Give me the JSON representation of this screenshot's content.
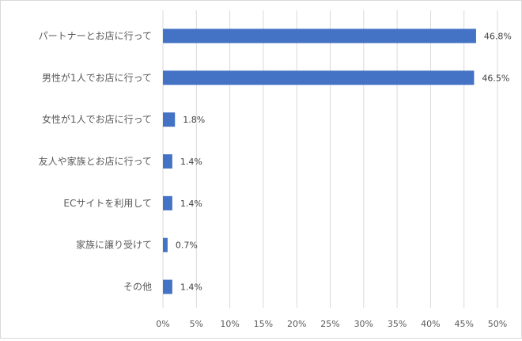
{
  "chart_data": {
    "type": "bar",
    "orientation": "horizontal",
    "categories": [
      "パートナーとお店に行って",
      "男性が1人でお店に行って",
      "女性が1人でお店に行って",
      "友人や家族とお店に行って",
      "ECサイトを利用して",
      "家族に譲り受けて",
      "その他"
    ],
    "values": [
      46.8,
      46.5,
      1.8,
      1.4,
      1.4,
      0.7,
      1.4
    ],
    "value_labels": [
      "46.8%",
      "46.5%",
      "1.8%",
      "1.4%",
      "1.4%",
      "0.7%",
      "1.4%"
    ],
    "xlim": [
      0,
      50
    ],
    "x_ticks": [
      0,
      5,
      10,
      15,
      20,
      25,
      30,
      35,
      40,
      45,
      50
    ],
    "x_tick_labels": [
      "0%",
      "5%",
      "10%",
      "15%",
      "20%",
      "25%",
      "30%",
      "35%",
      "40%",
      "45%",
      "50%"
    ],
    "title": "",
    "xlabel": "",
    "ylabel": "",
    "grid": "vertical",
    "legend": "none",
    "bar_color": "#4472C4",
    "grid_color": "#d9d9d9"
  }
}
